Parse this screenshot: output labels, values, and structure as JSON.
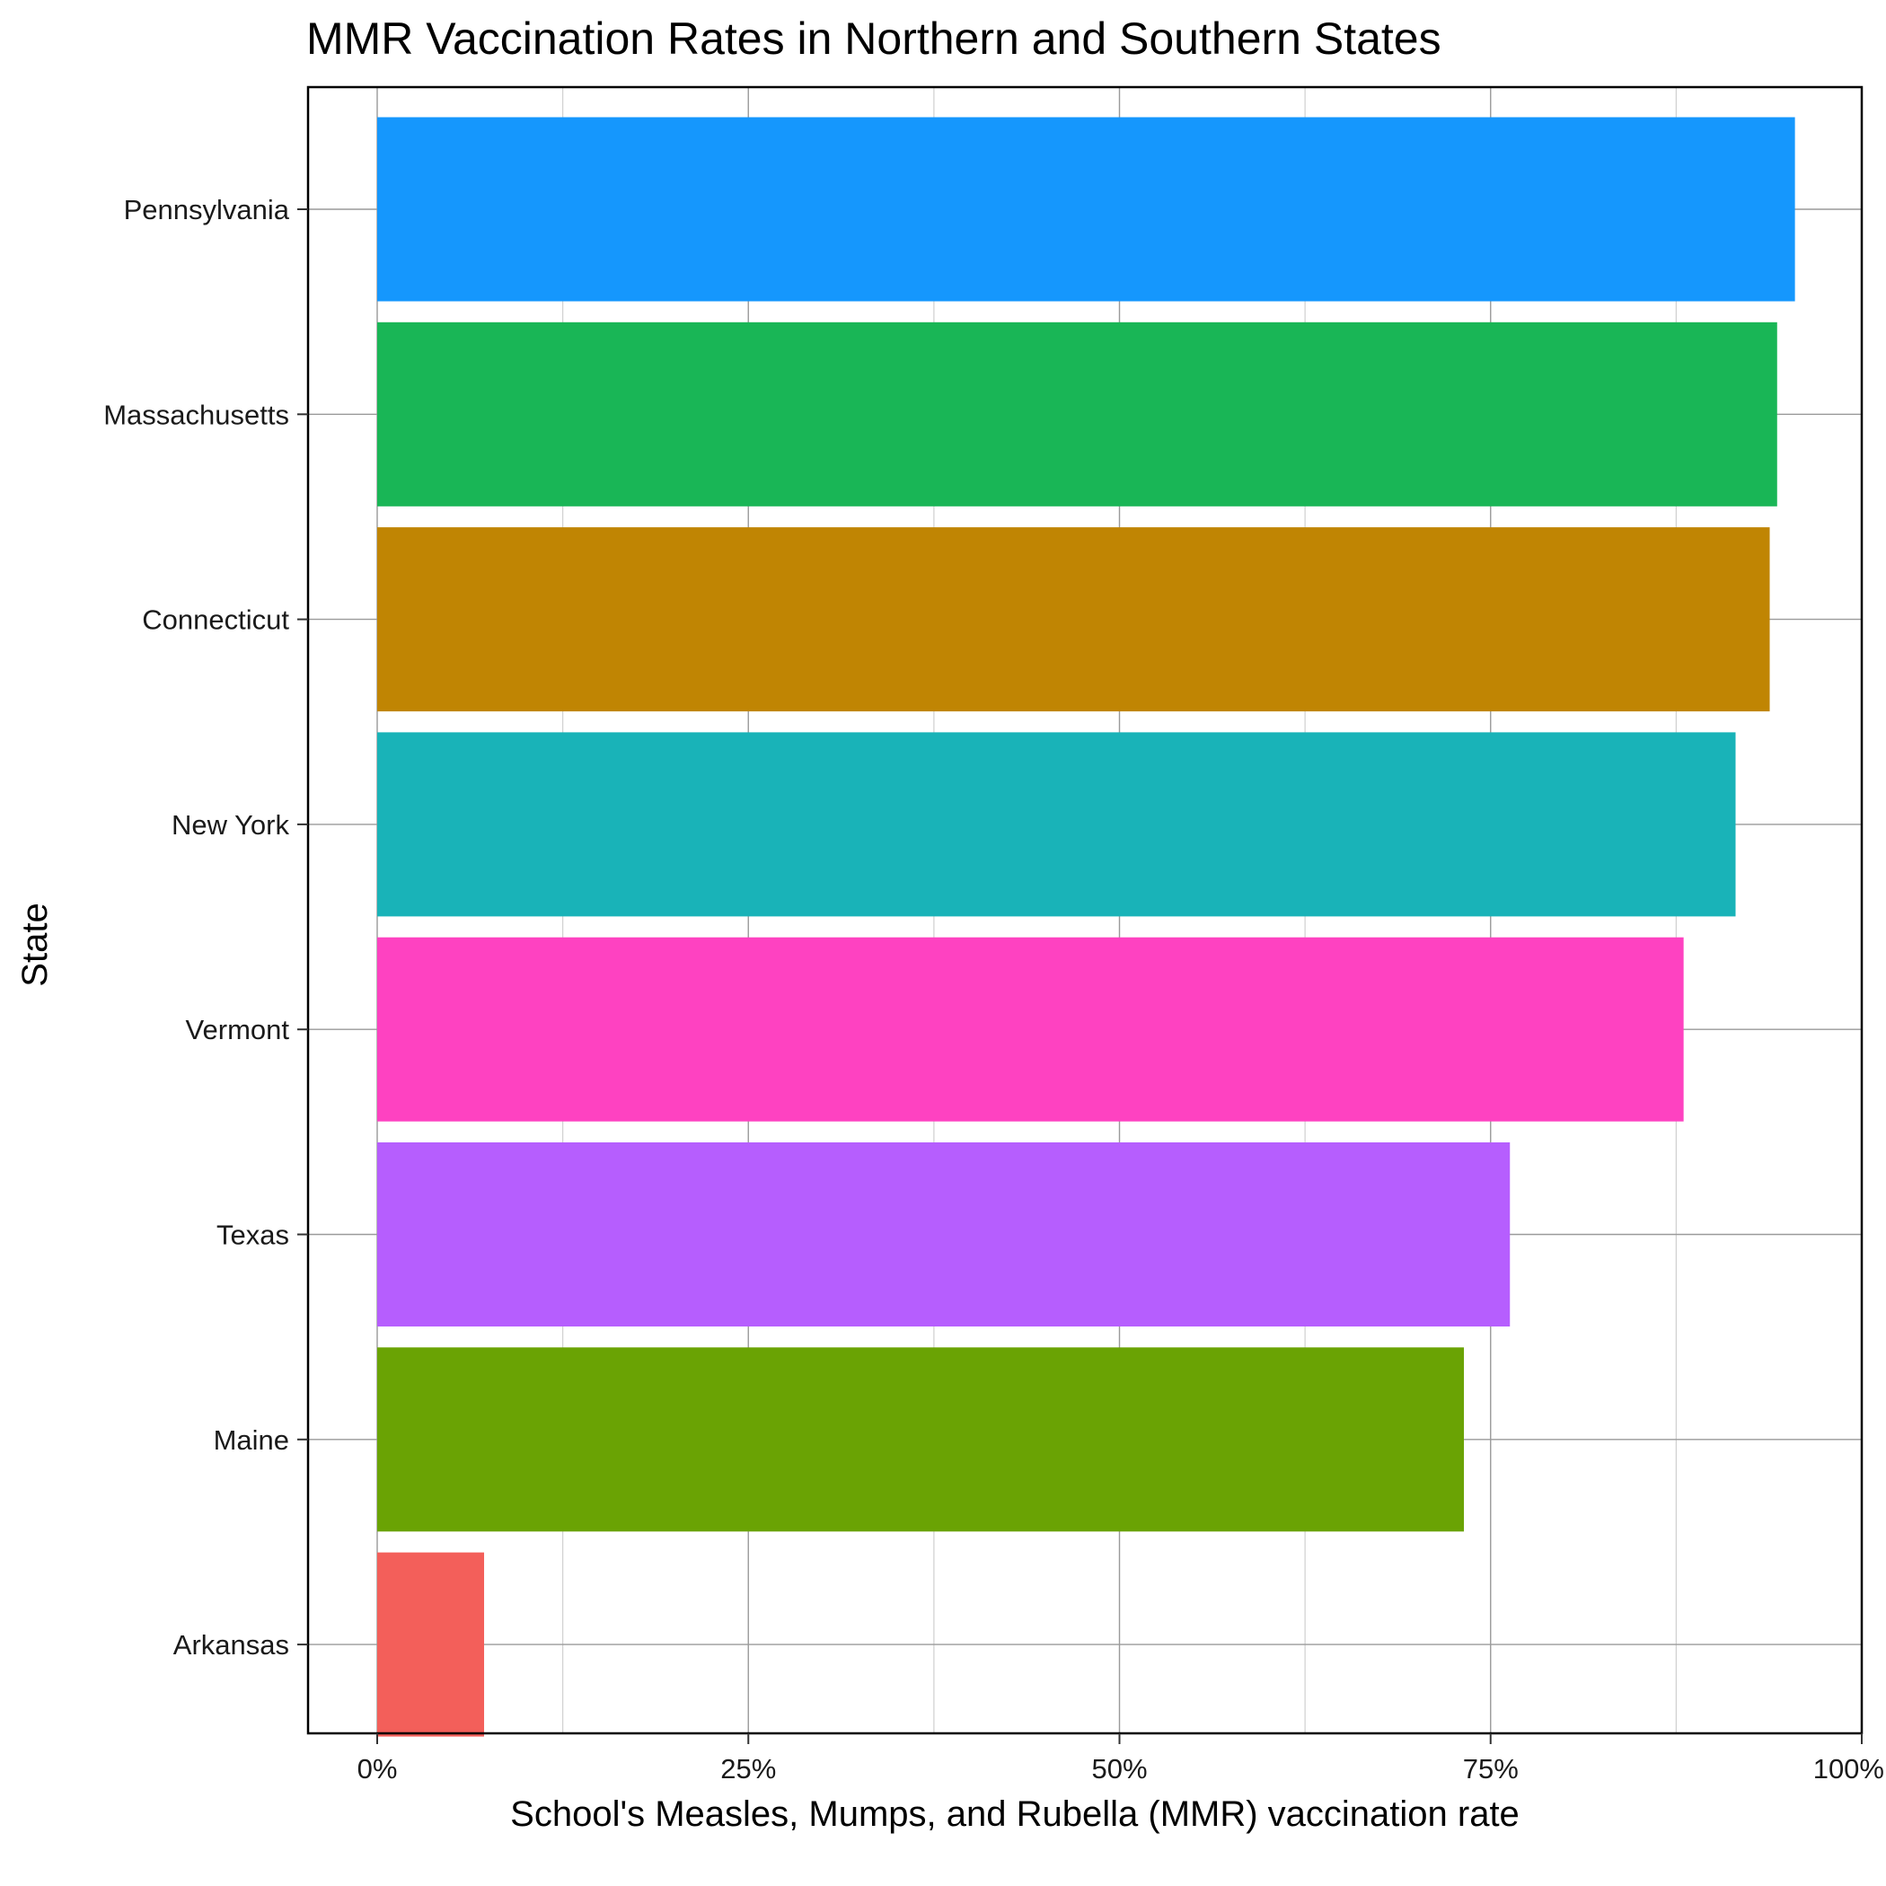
{
  "chart_data": {
    "type": "bar",
    "orientation": "horizontal",
    "title": "MMR Vaccination Rates in Northern and Southern States",
    "xlabel": "School's Measles, Mumps, and Rubella (MMR) vaccination rate",
    "ylabel": "State",
    "xlim": [
      0,
      100
    ],
    "x_ticks": [
      0,
      25,
      50,
      75,
      100
    ],
    "x_tick_labels": [
      "0%",
      "25%",
      "50%",
      "75%",
      "100%"
    ],
    "grid": true,
    "legend": "none",
    "categories": [
      "Pennsylvania",
      "Massachusetts",
      "Connecticut",
      "New York",
      "Vermont",
      "Texas",
      "Maine",
      "Arkansas"
    ],
    "values": [
      95.5,
      94.3,
      93.8,
      91.5,
      88.0,
      76.3,
      73.2,
      7.2
    ],
    "colors": [
      "#1597fd",
      "#19b656",
      "#c08503",
      "#19b3b8",
      "#fe42c1",
      "#b65efe",
      "#6aa304",
      "#f35f5a"
    ]
  }
}
